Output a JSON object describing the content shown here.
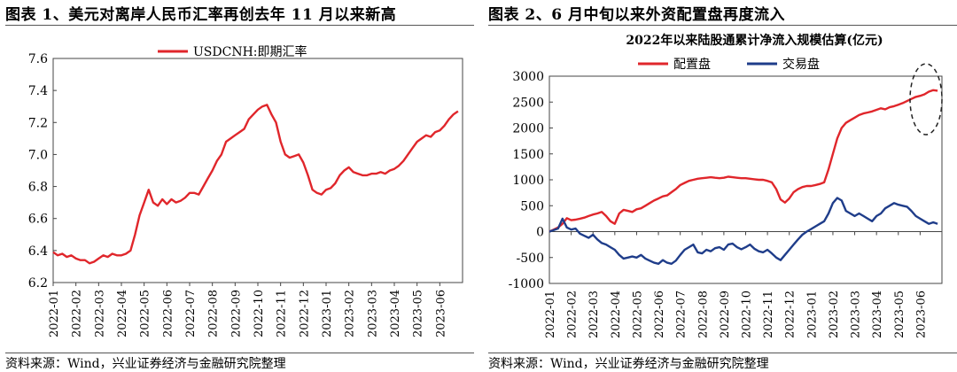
{
  "figures": [
    {
      "title": "图表 1、美元对离岸人民币汇率再创去年 11 月以来新高",
      "source": "资料来源：Wind，兴业证券经济与金融研究院整理"
    },
    {
      "title": "图表 2、6 月中旬以来外资配置盘再度流入",
      "source": "资料来源：Wind，兴业证券经济与金融研究院整理"
    }
  ],
  "chart_data": [
    {
      "type": "line",
      "title": "",
      "xlabel": "",
      "ylabel": "",
      "ylim": [
        6.2,
        7.6
      ],
      "yticks": [
        "6.2",
        "6.4",
        "6.6",
        "6.8",
        "7.0",
        "7.2",
        "7.4",
        "7.6"
      ],
      "xticks": [
        "2022-01",
        "2022-02",
        "2022-03",
        "2022-04",
        "2022-05",
        "2022-06",
        "2022-07",
        "2022-08",
        "2022-09",
        "2022-10",
        "2022-11",
        "2022-12",
        "2023-01",
        "2023-02",
        "2023-03",
        "2023-04",
        "2023-05",
        "2023-06"
      ],
      "legend_position": "top-center",
      "grid": false,
      "series": [
        {
          "name": "USDCNH:即期汇率",
          "color": "#e0262b",
          "x": [
            0,
            0.2,
            0.4,
            0.6,
            0.8,
            1.0,
            1.2,
            1.4,
            1.6,
            1.8,
            2.0,
            2.2,
            2.4,
            2.6,
            2.8,
            3.0,
            3.2,
            3.4,
            3.6,
            3.8,
            4.0,
            4.2,
            4.4,
            4.6,
            4.8,
            5.0,
            5.2,
            5.4,
            5.6,
            5.8,
            6.0,
            6.2,
            6.4,
            6.6,
            6.8,
            7.0,
            7.2,
            7.4,
            7.6,
            7.8,
            8.0,
            8.2,
            8.4,
            8.6,
            8.8,
            9.0,
            9.2,
            9.4,
            9.6,
            9.8,
            10.0,
            10.2,
            10.4,
            10.6,
            10.8,
            11.0,
            11.2,
            11.4,
            11.6,
            11.8,
            12.0,
            12.2,
            12.4,
            12.6,
            12.8,
            13.0,
            13.2,
            13.4,
            13.6,
            13.8,
            14.0,
            14.2,
            14.4,
            14.6,
            14.8,
            15.0,
            15.2,
            15.4,
            15.6,
            15.8,
            16.0,
            16.2,
            16.4,
            16.6,
            16.8,
            17.0,
            17.2,
            17.4,
            17.6,
            17.8
          ],
          "y": [
            6.39,
            6.37,
            6.38,
            6.36,
            6.37,
            6.35,
            6.34,
            6.34,
            6.32,
            6.33,
            6.35,
            6.37,
            6.36,
            6.38,
            6.37,
            6.37,
            6.38,
            6.4,
            6.5,
            6.62,
            6.7,
            6.78,
            6.7,
            6.68,
            6.72,
            6.69,
            6.72,
            6.7,
            6.71,
            6.73,
            6.76,
            6.76,
            6.75,
            6.8,
            6.85,
            6.9,
            6.96,
            7.0,
            7.08,
            7.1,
            7.12,
            7.14,
            7.16,
            7.22,
            7.25,
            7.28,
            7.3,
            7.31,
            7.25,
            7.2,
            7.08,
            7.0,
            6.98,
            6.99,
            7.0,
            6.95,
            6.87,
            6.78,
            6.76,
            6.75,
            6.78,
            6.79,
            6.82,
            6.87,
            6.9,
            6.92,
            6.89,
            6.88,
            6.87,
            6.87,
            6.88,
            6.88,
            6.89,
            6.88,
            6.9,
            6.91,
            6.93,
            6.96,
            7.0,
            7.04,
            7.08,
            7.1,
            7.12,
            7.11,
            7.14,
            7.15,
            7.18,
            7.22,
            7.25,
            7.27
          ]
        }
      ]
    },
    {
      "type": "line",
      "title": "2022年以来陆股通累计净流入规模估算(亿元)",
      "xlabel": "",
      "ylabel": "",
      "ylim": [
        -1000,
        3000
      ],
      "yticks": [
        "-1000",
        "-500",
        "0",
        "500",
        "1000",
        "1500",
        "2000",
        "2500",
        "3000"
      ],
      "xticks": [
        "2022-01",
        "2022-02",
        "2022-03",
        "2022-04",
        "2022-05",
        "2022-06",
        "2022-07",
        "2022-08",
        "2022-09",
        "2022-10",
        "2022-11",
        "2022-12",
        "2023-01",
        "2023-02",
        "2023-03",
        "2023-04",
        "2023-05",
        "2023-06"
      ],
      "legend_position": "top-center",
      "grid": false,
      "annotation": "dashed ellipse highlighting June 2023",
      "series": [
        {
          "name": "配置盘",
          "color": "#e0262b",
          "x": [
            0,
            0.2,
            0.4,
            0.6,
            0.8,
            1.0,
            1.2,
            1.4,
            1.6,
            1.8,
            2.0,
            2.2,
            2.4,
            2.6,
            2.8,
            3.0,
            3.2,
            3.4,
            3.6,
            3.8,
            4.0,
            4.2,
            4.4,
            4.6,
            4.8,
            5.0,
            5.2,
            5.4,
            5.6,
            5.8,
            6.0,
            6.2,
            6.4,
            6.6,
            6.8,
            7.0,
            7.2,
            7.4,
            7.6,
            7.8,
            8.0,
            8.2,
            8.4,
            8.6,
            8.8,
            9.0,
            9.2,
            9.4,
            9.6,
            9.8,
            10.0,
            10.2,
            10.4,
            10.6,
            10.8,
            11.0,
            11.2,
            11.4,
            11.6,
            11.8,
            12.0,
            12.2,
            12.4,
            12.6,
            12.8,
            13.0,
            13.2,
            13.4,
            13.6,
            13.8,
            14.0,
            14.2,
            14.4,
            14.6,
            14.8,
            15.0,
            15.2,
            15.4,
            15.6,
            15.8,
            16.0,
            16.2,
            16.4,
            16.6,
            16.8,
            17.0,
            17.2,
            17.4,
            17.6,
            17.8
          ],
          "y": [
            0,
            40,
            80,
            150,
            260,
            220,
            230,
            250,
            270,
            300,
            330,
            350,
            380,
            300,
            200,
            150,
            350,
            420,
            400,
            380,
            430,
            450,
            500,
            550,
            600,
            640,
            680,
            700,
            760,
            820,
            900,
            940,
            980,
            1000,
            1020,
            1030,
            1040,
            1050,
            1040,
            1030,
            1040,
            1060,
            1050,
            1040,
            1030,
            1030,
            1020,
            1010,
            1000,
            1000,
            980,
            950,
            820,
            620,
            560,
            640,
            760,
            820,
            860,
            880,
            880,
            900,
            920,
            950,
            1200,
            1500,
            1800,
            2000,
            2100,
            2150,
            2200,
            2250,
            2280,
            2300,
            2320,
            2350,
            2380,
            2360,
            2400,
            2420,
            2450,
            2480,
            2520,
            2560,
            2600,
            2620,
            2650,
            2700,
            2730,
            2720
          ]
        },
        {
          "name": "交易盘",
          "color": "#1f3d8a",
          "x": [
            0,
            0.2,
            0.4,
            0.6,
            0.8,
            1.0,
            1.2,
            1.4,
            1.6,
            1.8,
            2.0,
            2.2,
            2.4,
            2.6,
            2.8,
            3.0,
            3.2,
            3.4,
            3.6,
            3.8,
            4.0,
            4.2,
            4.4,
            4.6,
            4.8,
            5.0,
            5.2,
            5.4,
            5.6,
            5.8,
            6.0,
            6.2,
            6.4,
            6.6,
            6.8,
            7.0,
            7.2,
            7.4,
            7.6,
            7.8,
            8.0,
            8.2,
            8.4,
            8.6,
            8.8,
            9.0,
            9.2,
            9.4,
            9.6,
            9.8,
            10.0,
            10.2,
            10.4,
            10.6,
            10.8,
            11.0,
            11.2,
            11.4,
            11.6,
            11.8,
            12.0,
            12.2,
            12.4,
            12.6,
            12.8,
            13.0,
            13.2,
            13.4,
            13.6,
            13.8,
            14.0,
            14.2,
            14.4,
            14.6,
            14.8,
            15.0,
            15.2,
            15.4,
            15.6,
            15.8,
            16.0,
            16.2,
            16.4,
            16.6,
            16.8,
            17.0,
            17.2,
            17.4,
            17.6,
            17.8
          ],
          "y": [
            0,
            30,
            60,
            250,
            80,
            40,
            60,
            -40,
            -80,
            -120,
            -60,
            -150,
            -220,
            -250,
            -300,
            -350,
            -450,
            -520,
            -500,
            -480,
            -500,
            -450,
            -520,
            -560,
            -600,
            -620,
            -550,
            -600,
            -620,
            -560,
            -450,
            -350,
            -300,
            -250,
            -400,
            -420,
            -350,
            -380,
            -320,
            -300,
            -350,
            -250,
            -230,
            -300,
            -340,
            -300,
            -250,
            -330,
            -380,
            -400,
            -350,
            -420,
            -500,
            -550,
            -450,
            -350,
            -250,
            -150,
            -60,
            0,
            50,
            100,
            150,
            200,
            350,
            550,
            650,
            600,
            400,
            350,
            300,
            350,
            300,
            250,
            200,
            300,
            350,
            450,
            500,
            550,
            520,
            500,
            480,
            400,
            300,
            250,
            200,
            150,
            180,
            150
          ]
        }
      ]
    }
  ]
}
